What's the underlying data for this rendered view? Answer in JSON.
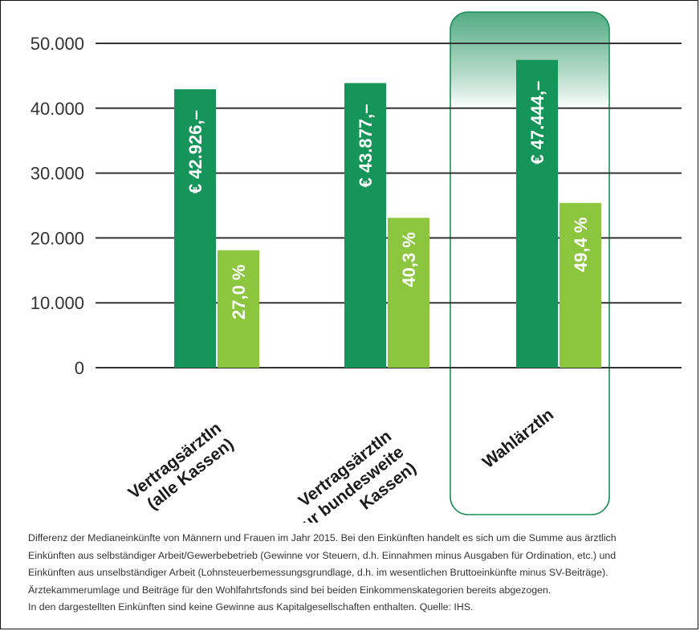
{
  "chart_data": {
    "type": "bar",
    "categories": [
      [
        "VertragsärztIn",
        "(alle Kassen)"
      ],
      [
        "VertragsärztIn",
        "(nur bundesweite",
        "Kassen)"
      ],
      [
        "WahlärztIn"
      ]
    ],
    "ylim": [
      0,
      50000
    ],
    "yticks": [
      {
        "value": 0,
        "label": "0"
      },
      {
        "value": 10000,
        "label": "10.000"
      },
      {
        "value": 20000,
        "label": "20.000"
      },
      {
        "value": 30000,
        "label": "30.000"
      },
      {
        "value": 40000,
        "label": "40.000"
      },
      {
        "value": 50000,
        "label": "50.000"
      }
    ],
    "series": [
      {
        "color": "#16955a",
        "values": [
          42926,
          43877,
          47444
        ],
        "labels": [
          "€ 42.926,–",
          "€ 43.877,–",
          "€ 47.444,–"
        ]
      },
      {
        "color": "#8cc63f",
        "values": [
          18100,
          23100,
          25400
        ],
        "labels": [
          "27,0 %",
          "40,3 %",
          "49,4 %"
        ]
      }
    ],
    "highlight_category": 2,
    "highlight_color": "#1a8f5a",
    "grid": true
  },
  "caption": [
    "Differenz der Medianeinkünfte von Männern und Frauen im Jahr 2015. Bei den Einkünften handelt es sich um die Summe aus ärztlich",
    "Einkünften aus selbständiger Arbeit/Gewerbebetrieb (Gewinne vor Steuern, d.h. Einnahmen minus Ausgaben für Ordination, etc.) und",
    "Einkünften aus unselbständiger Arbeit (Lohnsteuerbemessungsgrundlage, d.h. im wesentlichen Bruttoeinkünfte minus SV-Beiträge).",
    "Ärztekammerumlage und Beiträge für den Wohlfahrtsfonds sind bei beiden Einkommenskategorien bereits abgezogen.",
    "In den dargestellten Einkünften sind keine Gewinne aus Kapitalgesellschaften enthalten. Quelle: IHS."
  ]
}
